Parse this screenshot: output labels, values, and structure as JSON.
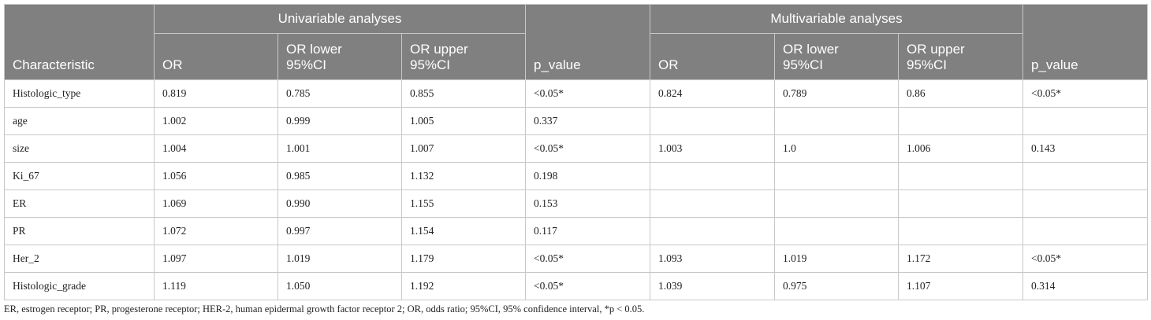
{
  "table": {
    "group_headers": [
      "Univariable analyses",
      "Multivariable analyses"
    ],
    "columns": [
      "Characteristic",
      "OR",
      "OR lower 95%CI",
      "OR upper 95%CI",
      "p_value",
      "OR",
      "OR lower 95%CI",
      "OR upper 95%CI",
      "p_value"
    ],
    "rows": [
      [
        "Histologic_type",
        "0.819",
        "0.785",
        "0.855",
        "<0.05*",
        "0.824",
        "0.789",
        "0.86",
        "<0.05*"
      ],
      [
        "age",
        "1.002",
        "0.999",
        "1.005",
        "0.337",
        null,
        null,
        null,
        null
      ],
      [
        "size",
        "1.004",
        "1.001",
        "1.007",
        "<0.05*",
        "1.003",
        "1.0",
        "1.006",
        "0.143"
      ],
      [
        "Ki_67",
        "1.056",
        "0.985",
        "1.132",
        "0.198",
        null,
        null,
        null,
        null
      ],
      [
        "ER",
        "1.069",
        "0.990",
        "1.155",
        "0.153",
        null,
        null,
        null,
        null
      ],
      [
        "PR",
        "1.072",
        "0.997",
        "1.154",
        "0.117",
        null,
        null,
        null,
        null
      ],
      [
        "Her_2",
        "1.097",
        "1.019",
        "1.179",
        "<0.05*",
        "1.093",
        "1.019",
        "1.172",
        "<0.05*"
      ],
      [
        "Histologic_grade",
        "1.119",
        "1.050",
        "1.192",
        "<0.05*",
        "1.039",
        "0.975",
        "1.107",
        "0.314"
      ]
    ]
  },
  "footnote": "ER, estrogen receptor; PR, progesterone receptor; HER-2, human epidermal growth factor receptor 2; OR, odds ratio; 95%CI, 95% confidence interval, *p < 0.05."
}
